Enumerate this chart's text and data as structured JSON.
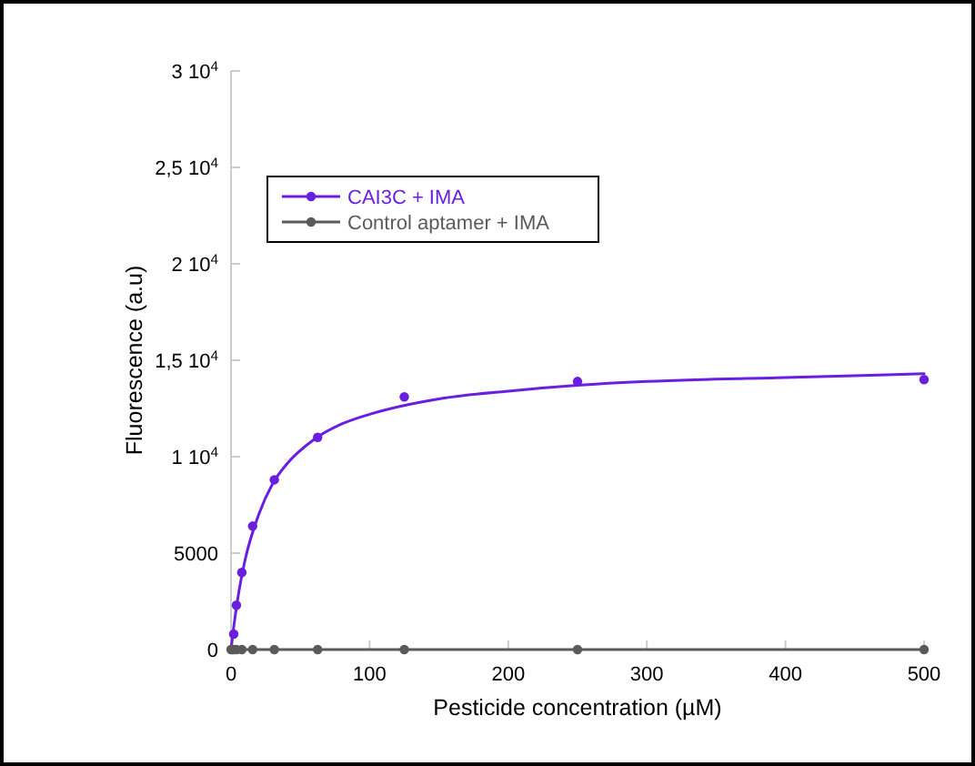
{
  "chart_data": {
    "type": "scatter",
    "xlabel": "Pesticide concentration (µM)",
    "ylabel": "Fluorescence (a.u)",
    "xlim": [
      0,
      500
    ],
    "xticks": [
      0,
      100,
      200,
      300,
      400,
      500
    ],
    "ylim": [
      0,
      30000
    ],
    "yticks": [
      0,
      5000,
      {
        "value": 10000,
        "label": "1 10$^{4}$"
      },
      {
        "value": 15000,
        "label": "1,5 10$^{4}$"
      },
      {
        "value": 20000,
        "label": "2 10$^{4}$"
      },
      {
        "value": 25000,
        "label": "2,5 10$^{4}$"
      },
      {
        "value": 30000,
        "label": "3 10$^{4}$"
      }
    ],
    "grid": false,
    "legend": "top left",
    "marker": "circle",
    "series": [
      {
        "name": "CAI3C + IMA",
        "color": "#6a1ee0",
        "x": [
          1.95,
          3.9,
          7.8,
          15.6,
          31.25,
          62.5,
          125,
          250,
          500
        ],
        "values": [
          800,
          2300,
          4000,
          6400,
          8800,
          11000,
          13100,
          13900,
          14000
        ]
      },
      {
        "type": "line",
        "marker": "none",
        "color": "#6a1ee0",
        "x": [
          0,
          2,
          5,
          10,
          20,
          30,
          40,
          60,
          80,
          100,
          150,
          200,
          250,
          300,
          400,
          500
        ],
        "values": [
          0,
          1200,
          2700,
          4600,
          7000,
          8600,
          9600,
          10900,
          11700,
          12200,
          13000,
          13400,
          13700,
          13900,
          14100,
          14300
        ]
      },
      {
        "name": "Control aptamer + IMA",
        "type": "line",
        "color": "#5a5a5a",
        "x": [
          0,
          0.98,
          1.95,
          3.9,
          7.8,
          15.6,
          31.25,
          62.5,
          125,
          250,
          500
        ],
        "values": [
          0,
          0,
          0,
          0,
          0,
          0,
          0,
          0,
          0,
          0,
          0
        ]
      }
    ]
  }
}
